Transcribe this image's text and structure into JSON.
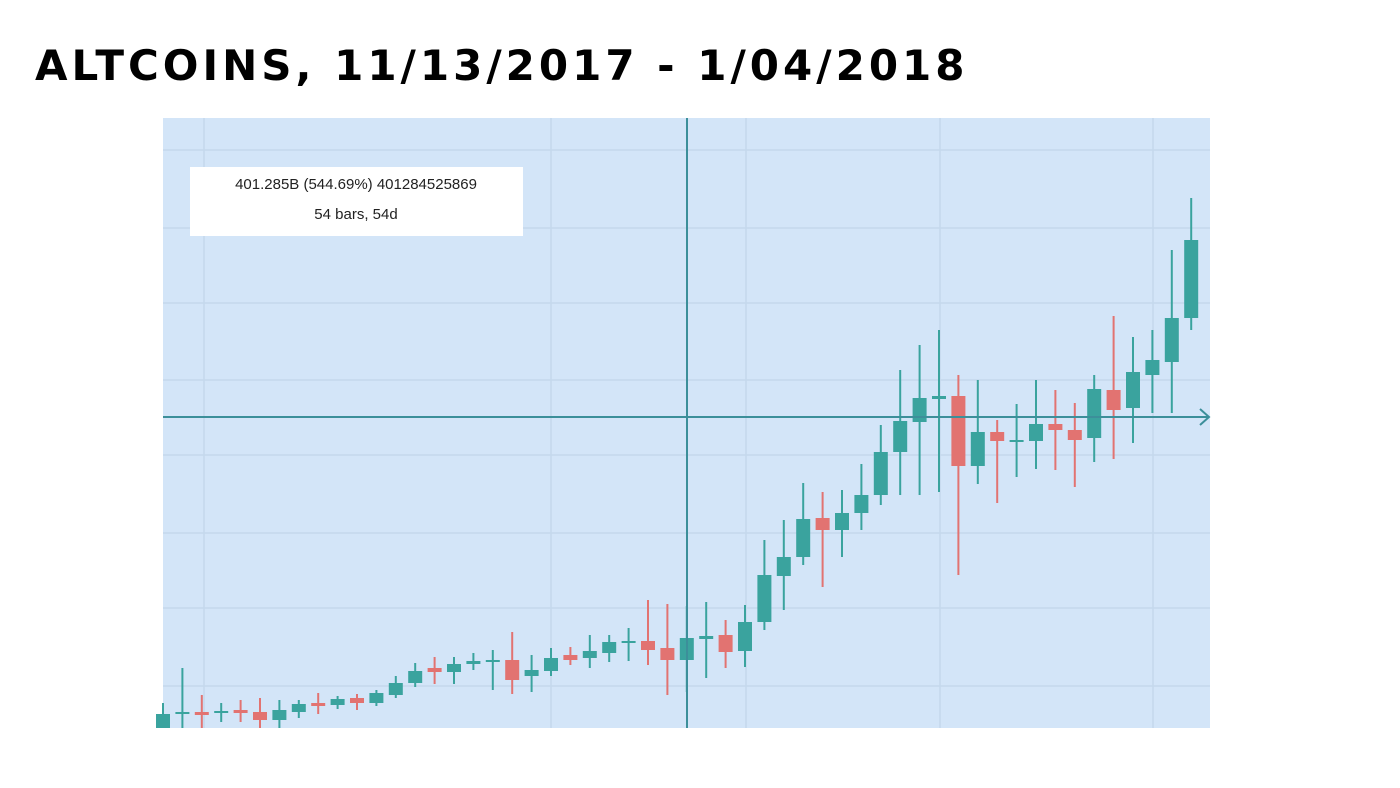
{
  "chart_data": {
    "type": "candlestick",
    "title": "ALTCOINS, 11/13/2017 - 1/04/2018",
    "annotation": {
      "line1": "401.285B (544.69%) 401284525869",
      "line2": "54 bars, 54d"
    },
    "up_color": "#3aa39e",
    "down_color": "#e27371",
    "ylim": [
      0,
      610
    ],
    "open": [
      0,
      14,
      16,
      15,
      18,
      16,
      8,
      16,
      25,
      23,
      30,
      25,
      33,
      45,
      60,
      56,
      64,
      66,
      68,
      52,
      57,
      73,
      70,
      75,
      85,
      87,
      80,
      68,
      89,
      93,
      77,
      106,
      152,
      171,
      210,
      198,
      215,
      233,
      276,
      306,
      329,
      332,
      262,
      296,
      286,
      287,
      304,
      298,
      290,
      338,
      320,
      353,
      366,
      410
    ],
    "high": [
      25,
      60,
      33,
      25,
      28,
      30,
      28,
      28,
      35,
      32,
      34,
      38,
      52,
      65,
      71,
      71,
      75,
      78,
      96,
      73,
      80,
      81,
      93,
      93,
      100,
      128,
      124,
      122,
      126,
      108,
      123,
      188,
      208,
      245,
      236,
      238,
      264,
      303,
      358,
      383,
      398,
      353,
      348,
      308,
      324,
      348,
      338,
      325,
      353,
      412,
      391,
      398,
      478,
      530
    ],
    "low": [
      0,
      0,
      0,
      6,
      6,
      0,
      0,
      10,
      14,
      19,
      18,
      22,
      30,
      41,
      44,
      44,
      58,
      38,
      34,
      36,
      52,
      63,
      60,
      66,
      67,
      63,
      33,
      36,
      50,
      60,
      61,
      98,
      118,
      163,
      141,
      171,
      198,
      223,
      233,
      233,
      236,
      153,
      244,
      225,
      251,
      259,
      258,
      241,
      266,
      269,
      285,
      315,
      315,
      398
    ],
    "close": [
      14,
      16,
      13,
      17,
      15,
      8,
      18,
      24,
      22,
      29,
      25,
      35,
      45,
      57,
      56,
      64,
      67,
      68,
      48,
      58,
      70,
      68,
      77,
      86,
      87,
      78,
      68,
      90,
      92,
      76,
      106,
      153,
      171,
      209,
      198,
      215,
      233,
      276,
      307,
      330,
      332,
      262,
      296,
      287,
      288,
      304,
      298,
      288,
      339,
      318,
      356,
      368,
      410,
      488
    ]
  }
}
